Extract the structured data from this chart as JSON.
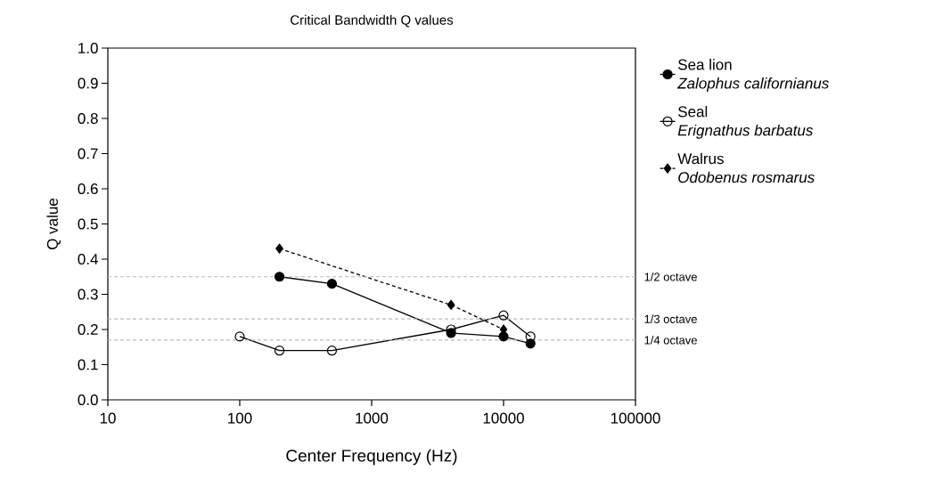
{
  "chart_data": {
    "type": "line",
    "title": "Critical Bandwidth Q values",
    "xlabel": "Center Frequency (Hz)",
    "ylabel": "Q value",
    "log": "x",
    "xlim": [
      10,
      100000
    ],
    "xticks": [
      10,
      100,
      1000,
      10000,
      100000
    ],
    "ylim": [
      0,
      1
    ],
    "yticks": [
      {
        "value": 0,
        "label": "0.0"
      },
      0.1,
      0.2,
      0.3,
      0.4,
      0.5,
      0.6,
      0.7,
      0.8,
      0.9,
      {
        "value": 1,
        "label": "1.0"
      }
    ],
    "grid": false,
    "legend": "top right",
    "series": [
      {
        "name": "Sea lion",
        "color": "#000000",
        "marker": "circle",
        "line_style": "solid",
        "x": [
          200,
          500,
          4000,
          10000,
          16000
        ],
        "values": [
          0.35,
          0.33,
          0.19,
          0.18,
          0.16
        ]
      },
      {
        "name": "Seal",
        "color": "#000000",
        "marker": "open circle",
        "line_style": "solid",
        "x": [
          100,
          200,
          500,
          4000,
          10000,
          16000
        ],
        "values": [
          0.18,
          0.14,
          0.14,
          0.2,
          0.24,
          0.18
        ]
      },
      {
        "name": "Walrus",
        "color": "#000000",
        "marker": "diamond",
        "line_style": "dashed",
        "x": [
          200,
          4000,
          10000
        ],
        "values": [
          0.43,
          0.27,
          0.2
        ]
      }
    ],
    "annotations": [
      "Zalophus californianus",
      "Erignathus barbatus",
      "Odobenus rosmarus"
    ],
    "ref_lines": [
      {
        "axis": "y",
        "value": 0.35,
        "label": "1/2 octave",
        "color": "#bbbbbb",
        "line_style": "dashed"
      },
      {
        "axis": "y",
        "value": 0.23,
        "label": "1/3 octave",
        "color": "#bbbbbb",
        "line_style": "dashed"
      },
      {
        "axis": "y",
        "value": 0.17,
        "label": "1/4 octave",
        "color": "#bbbbbb",
        "line_style": "dashed"
      }
    ]
  }
}
